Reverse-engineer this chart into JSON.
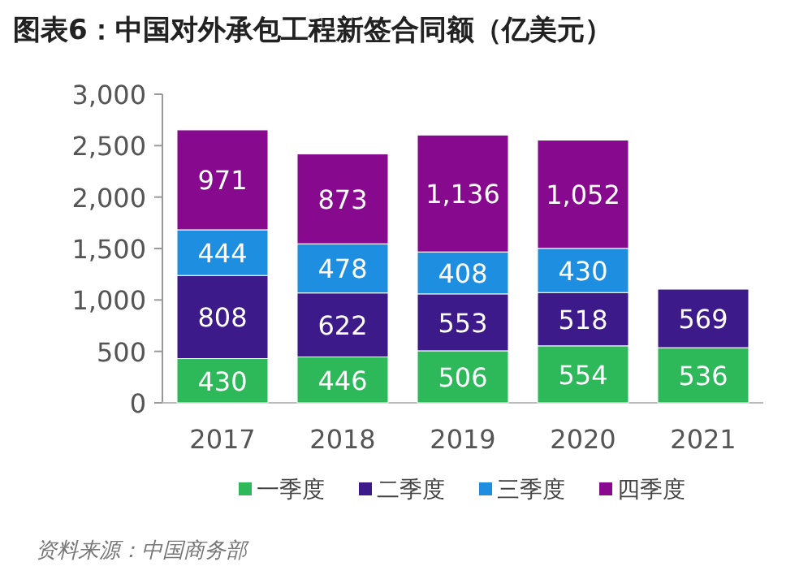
{
  "chart_data": {
    "type": "bar",
    "stacked": true,
    "title": "图表6：中国对外承包工程新签合同额（亿美元）",
    "categories": [
      "2017",
      "2018",
      "2019",
      "2020",
      "2021"
    ],
    "series": [
      {
        "name": "一季度",
        "color": "#2db85a",
        "values": [
          430,
          446,
          506,
          554,
          536
        ],
        "value_labels": [
          "430",
          "446",
          "506",
          "554",
          "536"
        ]
      },
      {
        "name": "二季度",
        "color": "#3d1a8a",
        "values": [
          808,
          622,
          553,
          518,
          569
        ],
        "value_labels": [
          "808",
          "622",
          "553",
          "518",
          "569"
        ]
      },
      {
        "name": "三季度",
        "color": "#1e8fe0",
        "values": [
          444,
          478,
          408,
          430,
          null
        ],
        "value_labels": [
          "444",
          "478",
          "408",
          "430",
          null
        ]
      },
      {
        "name": "四季度",
        "color": "#870a8e",
        "values": [
          971,
          873,
          1136,
          1052,
          null
        ],
        "value_labels": [
          "971",
          "873",
          "1,136",
          "1,052",
          null
        ]
      }
    ],
    "ylim": [
      0,
      3000
    ],
    "yticks": [
      {
        "value": 0,
        "label": "0"
      },
      {
        "value": 500,
        "label": "500"
      },
      {
        "value": 1000,
        "label": "1,000"
      },
      {
        "value": 1500,
        "label": "1,500"
      },
      {
        "value": 2000,
        "label": "2,000"
      },
      {
        "value": 2500,
        "label": "2,500"
      },
      {
        "value": 3000,
        "label": "3,000"
      }
    ],
    "grid": false,
    "legend": "bottom",
    "annotations": [
      "资料来源：中国商务部"
    ]
  }
}
